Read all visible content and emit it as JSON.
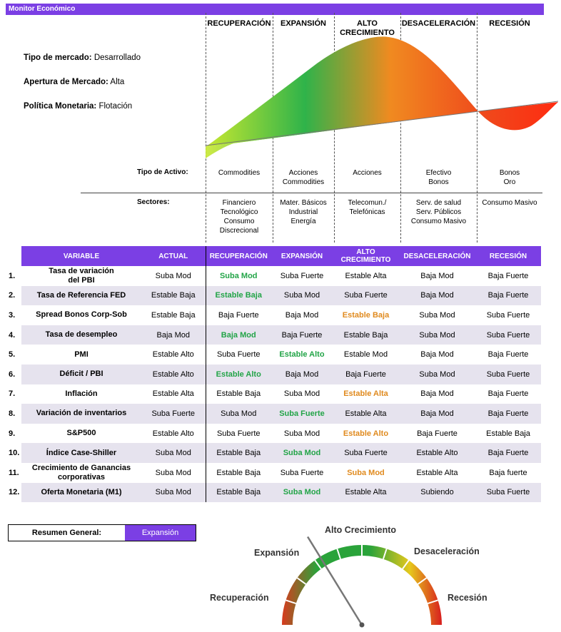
{
  "title": "Monitor Económico",
  "market": {
    "type_label": "Tipo de mercado:",
    "type_value": "Desarrollado",
    "opening_label": "Apertura de Mercado:",
    "opening_value": "Alta",
    "policy_label": "Política Monetaria:",
    "policy_value": "Flotación"
  },
  "phases": [
    {
      "name": "RECUPERACIÓN",
      "asset": "Commodities",
      "sectors": "Financiero\nTecnológico\nConsumo\nDiscrecional"
    },
    {
      "name": "EXPANSIÓN",
      "asset": "Acciones\nCommodities",
      "sectors": "Mater. Básicos\nIndustrial\nEnergía"
    },
    {
      "name": "ALTO\nCRECIMIENTO",
      "asset": "Acciones",
      "sectors": "Telecomun./\nTelefónicas"
    },
    {
      "name": "DESACELERACIÓN",
      "asset": "Efectivo\nBonos",
      "sectors": "Serv. de salud\nServ. Públicos\nConsumo Masivo"
    },
    {
      "name": "RECESIÓN",
      "asset": "Bonos\nOro",
      "sectors": "Consumo Masivo"
    }
  ],
  "asset_label": "Tipo de Activo:",
  "sectors_label": "Sectores:",
  "table": {
    "headers": [
      "VARIABLE",
      "ACTUAL",
      "RECUPERACIÓN",
      "EXPANSIÓN",
      "ALTO\nCRECIMIENTO",
      "DESACELERACIÓN",
      "RECESIÓN"
    ],
    "rows": [
      {
        "num": "1.",
        "var": "Tasa de variación\ndel PBI",
        "actual": "Suba Mod",
        "cells": [
          "Suba Mod",
          "Suba Fuerte",
          "Estable Alta",
          "Baja Mod",
          "Baja Fuerte"
        ],
        "hl": [
          0,
          "green"
        ]
      },
      {
        "num": "2.",
        "var": "Tasa de Referencia FED",
        "actual": "Estable Baja",
        "cells": [
          "Estable Baja",
          "Suba Mod",
          "Suba Fuerte",
          "Baja Mod",
          "Baja Fuerte"
        ],
        "hl": [
          0,
          "green"
        ]
      },
      {
        "num": "3.",
        "var": "Spread Bonos Corp-Sob",
        "actual": "Estable Baja",
        "cells": [
          "Baja Fuerte",
          "Baja Mod",
          "Estable Baja",
          "Suba Mod",
          "Suba Fuerte"
        ],
        "hl": [
          2,
          "orange"
        ]
      },
      {
        "num": "4.",
        "var": "Tasa de desempleo",
        "actual": "Baja Mod",
        "cells": [
          "Baja Mod",
          "Baja Fuerte",
          "Estable Baja",
          "Suba Mod",
          "Suba Fuerte"
        ],
        "hl": [
          0,
          "green"
        ]
      },
      {
        "num": "5.",
        "var": "PMI",
        "actual": "Estable Alto",
        "cells": [
          "Suba Fuerte",
          "Estable Alto",
          "Estable Mod",
          "Baja Mod",
          "Baja Fuerte"
        ],
        "hl": [
          1,
          "green"
        ]
      },
      {
        "num": "6.",
        "var": "Déficit / PBI",
        "actual": "Estable Alto",
        "cells": [
          "Estable Alto",
          "Baja Mod",
          "Baja Fuerte",
          "Suba Mod",
          "Suba Fuerte"
        ],
        "hl": [
          0,
          "green"
        ]
      },
      {
        "num": "7.",
        "var": "Inflación",
        "actual": "Estable Alta",
        "cells": [
          "Estable Baja",
          "Suba Mod",
          "Estable Alta",
          "Baja Mod",
          "Baja Fuerte"
        ],
        "hl": [
          2,
          "orange"
        ]
      },
      {
        "num": "8.",
        "var": "Variación de inventarios",
        "actual": "Suba Fuerte",
        "cells": [
          "Suba Mod",
          "Suba Fuerte",
          "Estable Alta",
          "Baja Mod",
          "Baja Fuerte"
        ],
        "hl": [
          1,
          "green"
        ]
      },
      {
        "num": "9.",
        "var": "S&P500",
        "actual": "Estable Alto",
        "cells": [
          "Suba Fuerte",
          "Suba Mod",
          "Estable Alto",
          "Baja Fuerte",
          "Estable Baja"
        ],
        "hl": [
          2,
          "orange"
        ]
      },
      {
        "num": "10.",
        "var": "Índice Case-Shiller",
        "actual": "Suba Mod",
        "cells": [
          "Estable Baja",
          "Suba Mod",
          "Suba Fuerte",
          "Estable Alto",
          "Baja Fuerte"
        ],
        "hl": [
          1,
          "green"
        ]
      },
      {
        "num": "11.",
        "var": "Crecimiento de Ganancias\ncorporativas",
        "actual": "Suba Mod",
        "cells": [
          "Estable Baja",
          "Suba Fuerte",
          "Suba Mod",
          "Estable Alta",
          "Baja fuerte"
        ],
        "hl": [
          2,
          "orange"
        ]
      },
      {
        "num": "12.",
        "var": "Oferta Monetaria (M1)",
        "actual": "Suba Mod",
        "cells": [
          "Estable Baja",
          "Suba Mod",
          "Estable Alta",
          "Subiendo",
          "Suba Fuerte"
        ],
        "hl": [
          1,
          "green"
        ]
      }
    ]
  },
  "summary": {
    "label": "Resumen General:",
    "value": "Expansión"
  },
  "gauge": {
    "labels": [
      "Recuperación",
      "Expansión",
      "Alto Crecimiento",
      "Desaceleración",
      "Recesión"
    ],
    "current": "Expansión",
    "colors": [
      "#d83a1e",
      "#2aa33a",
      "#e6c81c",
      "#d81e1e"
    ]
  }
}
